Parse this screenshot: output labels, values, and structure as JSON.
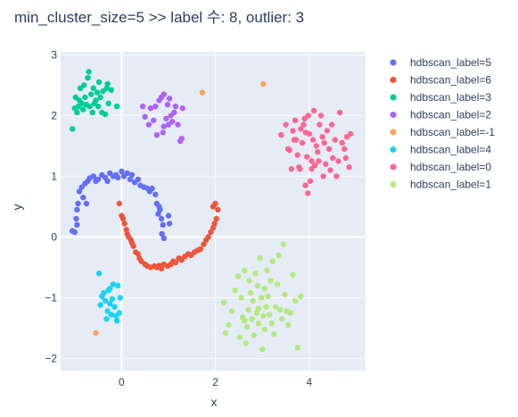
{
  "chart_data": {
    "type": "scatter",
    "title": "min_cluster_size=5 >> label 수: 8, outlier: 3",
    "xlabel": "x",
    "ylabel": "y",
    "xlim": [
      -1.3,
      5.2
    ],
    "ylim": [
      -2.2,
      3.05
    ],
    "xticks": [
      0,
      2,
      4
    ],
    "yticks": [
      -2,
      -1,
      0,
      1,
      2,
      3
    ],
    "background": "#e5ecf6",
    "grid": true,
    "legend_position": "right",
    "series": [
      {
        "name": "hdbscan_label=5",
        "color": "#636efa",
        "points": [
          [
            -1.05,
            0.1
          ],
          [
            -1.0,
            0.08
          ],
          [
            -0.97,
            0.3
          ],
          [
            -0.95,
            0.45
          ],
          [
            -0.93,
            0.55
          ],
          [
            -0.95,
            0.2
          ],
          [
            -0.9,
            0.75
          ],
          [
            -0.85,
            0.82
          ],
          [
            -0.82,
            0.65
          ],
          [
            -0.78,
            0.88
          ],
          [
            -0.75,
            0.55
          ],
          [
            -0.72,
            0.92
          ],
          [
            -0.68,
            0.97
          ],
          [
            -0.6,
            1.0
          ],
          [
            -0.55,
            0.92
          ],
          [
            -0.5,
            0.95
          ],
          [
            -0.42,
            1.02
          ],
          [
            -0.35,
            0.98
          ],
          [
            -0.3,
            0.92
          ],
          [
            -0.25,
            1.05
          ],
          [
            -0.18,
            1.0
          ],
          [
            -0.12,
            1.02
          ],
          [
            -0.08,
            0.98
          ],
          [
            0.0,
            1.08
          ],
          [
            0.05,
            1.0
          ],
          [
            0.12,
            1.05
          ],
          [
            0.18,
            0.95
          ],
          [
            0.22,
            1.02
          ],
          [
            0.28,
            0.9
          ],
          [
            0.35,
            0.95
          ],
          [
            0.4,
            0.85
          ],
          [
            0.48,
            0.82
          ],
          [
            0.55,
            0.8
          ],
          [
            0.6,
            0.75
          ],
          [
            0.65,
            0.8
          ],
          [
            0.72,
            0.7
          ],
          [
            0.75,
            0.55
          ],
          [
            0.8,
            0.5
          ],
          [
            0.82,
            0.45
          ],
          [
            0.78,
            0.38
          ],
          [
            0.85,
            0.3
          ],
          [
            0.88,
            0.2
          ],
          [
            0.86,
            0.05
          ],
          [
            1.0,
            0.35
          ],
          [
            1.02,
            0.22
          ],
          [
            0.9,
            -0.02
          ]
        ]
      },
      {
        "name": "hdbscan_label=6",
        "color": "#ef553b",
        "points": [
          [
            -0.05,
            0.55
          ],
          [
            0.0,
            0.35
          ],
          [
            0.03,
            0.3
          ],
          [
            0.06,
            0.22
          ],
          [
            0.1,
            0.12
          ],
          [
            0.12,
            0.05
          ],
          [
            0.15,
            0.0
          ],
          [
            0.2,
            -0.05
          ],
          [
            0.22,
            -0.1
          ],
          [
            0.25,
            -0.15
          ],
          [
            0.3,
            -0.25
          ],
          [
            0.35,
            -0.28
          ],
          [
            0.38,
            -0.35
          ],
          [
            0.42,
            -0.4
          ],
          [
            0.5,
            -0.45
          ],
          [
            0.55,
            -0.48
          ],
          [
            0.62,
            -0.5
          ],
          [
            0.7,
            -0.48
          ],
          [
            0.75,
            -0.5
          ],
          [
            0.8,
            -0.47
          ],
          [
            0.85,
            -0.52
          ],
          [
            0.9,
            -0.45
          ],
          [
            0.98,
            -0.48
          ],
          [
            1.05,
            -0.45
          ],
          [
            1.1,
            -0.4
          ],
          [
            1.15,
            -0.42
          ],
          [
            1.22,
            -0.35
          ],
          [
            1.28,
            -0.38
          ],
          [
            1.35,
            -0.32
          ],
          [
            1.42,
            -0.28
          ],
          [
            1.48,
            -0.3
          ],
          [
            1.55,
            -0.25
          ],
          [
            1.62,
            -0.22
          ],
          [
            1.68,
            -0.2
          ],
          [
            1.75,
            -0.12
          ],
          [
            1.8,
            -0.05
          ],
          [
            1.85,
            0.0
          ],
          [
            1.9,
            0.08
          ],
          [
            1.95,
            0.15
          ],
          [
            1.98,
            0.22
          ],
          [
            2.02,
            0.3
          ],
          [
            2.05,
            0.45
          ],
          [
            2.0,
            0.55
          ],
          [
            1.95,
            0.5
          ]
        ]
      },
      {
        "name": "hdbscan_label=3",
        "color": "#00cc96",
        "points": [
          [
            -1.05,
            1.78
          ],
          [
            -0.95,
            2.05
          ],
          [
            -0.92,
            2.15
          ],
          [
            -0.9,
            2.25
          ],
          [
            -0.88,
            2.45
          ],
          [
            -0.85,
            2.2
          ],
          [
            -0.82,
            2.1
          ],
          [
            -0.8,
            2.5
          ],
          [
            -0.78,
            2.3
          ],
          [
            -0.75,
            2.18
          ],
          [
            -0.72,
            2.62
          ],
          [
            -0.7,
            2.72
          ],
          [
            -0.68,
            2.15
          ],
          [
            -0.65,
            2.35
          ],
          [
            -0.62,
            2.05
          ],
          [
            -0.6,
            2.45
          ],
          [
            -0.58,
            2.2
          ],
          [
            -0.55,
            2.25
          ],
          [
            -0.52,
            2.38
          ],
          [
            -0.5,
            2.15
          ],
          [
            -0.48,
            2.55
          ],
          [
            -0.45,
            2.3
          ],
          [
            -0.42,
            2.05
          ],
          [
            -0.4,
            2.4
          ],
          [
            -0.35,
            2.02
          ],
          [
            -0.32,
            2.45
          ],
          [
            -0.3,
            2.52
          ],
          [
            -0.28,
            2.2
          ],
          [
            -0.22,
            2.42
          ],
          [
            -0.1,
            2.15
          ],
          [
            -1.0,
            2.12
          ],
          [
            -0.98,
            2.3
          ]
        ]
      },
      {
        "name": "hdbscan_label=2",
        "color": "#ab63fa",
        "points": [
          [
            0.45,
            2.15
          ],
          [
            0.5,
            1.98
          ],
          [
            0.58,
            1.85
          ],
          [
            0.62,
            2.12
          ],
          [
            0.68,
            1.92
          ],
          [
            0.72,
            2.15
          ],
          [
            0.75,
            1.68
          ],
          [
            0.8,
            2.25
          ],
          [
            0.85,
            2.3
          ],
          [
            0.88,
            1.72
          ],
          [
            0.9,
            2.35
          ],
          [
            0.95,
            1.95
          ],
          [
            0.98,
            2.18
          ],
          [
            1.0,
            1.85
          ],
          [
            1.02,
            2.28
          ],
          [
            1.05,
            2.0
          ],
          [
            1.08,
            1.9
          ],
          [
            1.12,
            2.05
          ],
          [
            1.15,
            2.15
          ],
          [
            1.2,
            1.85
          ],
          [
            1.25,
            1.58
          ],
          [
            1.28,
            1.62
          ],
          [
            1.3,
            2.12
          ],
          [
            0.9,
            1.82
          ]
        ]
      },
      {
        "name": "hdbscan_label=-1",
        "color": "#ffa15a",
        "points": [
          [
            1.72,
            2.38
          ],
          [
            3.02,
            2.52
          ],
          [
            -0.55,
            -1.58
          ]
        ]
      },
      {
        "name": "hdbscan_label=4",
        "color": "#19d3f3",
        "points": [
          [
            -0.48,
            -0.6
          ],
          [
            -0.45,
            -1.12
          ],
          [
            -0.42,
            -0.98
          ],
          [
            -0.38,
            -0.92
          ],
          [
            -0.35,
            -1.05
          ],
          [
            -0.32,
            -1.35
          ],
          [
            -0.3,
            -1.22
          ],
          [
            -0.28,
            -0.88
          ],
          [
            -0.25,
            -1.1
          ],
          [
            -0.22,
            -1.28
          ],
          [
            -0.2,
            -1.02
          ],
          [
            -0.18,
            -0.78
          ],
          [
            -0.15,
            -1.15
          ],
          [
            -0.12,
            -1.3
          ],
          [
            -0.1,
            -1.38
          ],
          [
            -0.08,
            -0.8
          ],
          [
            -0.05,
            -1.25
          ],
          [
            -0.03,
            -1.0
          ],
          [
            -0.25,
            -0.85
          ]
        ]
      },
      {
        "name": "hdbscan_label=0",
        "color": "#ff6692",
        "points": [
          [
            3.4,
            1.68
          ],
          [
            3.5,
            1.85
          ],
          [
            3.55,
            1.45
          ],
          [
            3.58,
            1.43
          ],
          [
            3.62,
            1.12
          ],
          [
            3.65,
            1.75
          ],
          [
            3.68,
            1.6
          ],
          [
            3.7,
            1.92
          ],
          [
            3.72,
            1.6
          ],
          [
            3.75,
            1.35
          ],
          [
            3.78,
            1.15
          ],
          [
            3.8,
            1.12
          ],
          [
            3.82,
            1.78
          ],
          [
            3.85,
            1.55
          ],
          [
            3.88,
            1.85
          ],
          [
            3.9,
            1.95
          ],
          [
            3.92,
            1.72
          ],
          [
            3.95,
            1.32
          ],
          [
            3.98,
            2.0
          ],
          [
            3.97,
            0.72
          ],
          [
            4.0,
            1.7
          ],
          [
            4.02,
            0.92
          ],
          [
            4.05,
            1.25
          ],
          [
            4.08,
            1.6
          ],
          [
            4.1,
            2.08
          ],
          [
            4.12,
            1.18
          ],
          [
            4.15,
            1.5
          ],
          [
            4.18,
            1.4
          ],
          [
            4.2,
            1.25
          ],
          [
            4.22,
            1.85
          ],
          [
            4.25,
            2.0
          ],
          [
            4.28,
            1.65
          ],
          [
            4.3,
            1.0
          ],
          [
            4.32,
            1.55
          ],
          [
            4.35,
            1.2
          ],
          [
            4.38,
            1.75
          ],
          [
            4.42,
            1.45
          ],
          [
            4.45,
            1.1
          ],
          [
            4.48,
            1.85
          ],
          [
            4.5,
            1.3
          ],
          [
            4.55,
            1.6
          ],
          [
            4.58,
            1.0
          ],
          [
            4.62,
            1.25
          ],
          [
            4.65,
            2.05
          ],
          [
            4.7,
            1.55
          ],
          [
            4.75,
            1.45
          ],
          [
            4.78,
            1.3
          ],
          [
            4.8,
            1.65
          ],
          [
            4.85,
            1.15
          ],
          [
            4.88,
            1.7
          ],
          [
            4.05,
            1.12
          ],
          [
            3.92,
            0.85
          ]
        ]
      },
      {
        "name": "hdbscan_label=1",
        "color": "#b6e880",
        "points": [
          [
            2.18,
            -1.08
          ],
          [
            2.22,
            -1.58
          ],
          [
            2.28,
            -1.45
          ],
          [
            2.35,
            -1.22
          ],
          [
            2.42,
            -0.88
          ],
          [
            2.48,
            -0.65
          ],
          [
            2.52,
            -1.65
          ],
          [
            2.55,
            -1.0
          ],
          [
            2.58,
            -1.32
          ],
          [
            2.62,
            -0.55
          ],
          [
            2.65,
            -1.75
          ],
          [
            2.68,
            -1.48
          ],
          [
            2.7,
            -1.2
          ],
          [
            2.72,
            -0.72
          ],
          [
            2.75,
            -0.92
          ],
          [
            2.78,
            -1.35
          ],
          [
            2.8,
            -1.05
          ],
          [
            2.82,
            -1.62
          ],
          [
            2.85,
            -0.6
          ],
          [
            2.88,
            -1.25
          ],
          [
            2.9,
            -0.8
          ],
          [
            2.92,
            -1.42
          ],
          [
            2.95,
            -0.35
          ],
          [
            2.98,
            -1.0
          ],
          [
            3.0,
            -1.85
          ],
          [
            3.02,
            -1.3
          ],
          [
            3.05,
            -0.85
          ],
          [
            3.08,
            -1.15
          ],
          [
            3.1,
            -0.55
          ],
          [
            3.12,
            -0.98
          ],
          [
            3.15,
            -1.28
          ],
          [
            3.18,
            -0.72
          ],
          [
            3.2,
            -1.42
          ],
          [
            3.22,
            -0.4
          ],
          [
            3.25,
            -1.6
          ],
          [
            3.28,
            -1.15
          ],
          [
            3.32,
            -0.78
          ],
          [
            3.35,
            -0.3
          ],
          [
            3.38,
            -1.2
          ],
          [
            3.42,
            -1.35
          ],
          [
            3.45,
            -0.12
          ],
          [
            3.48,
            -0.95
          ],
          [
            3.52,
            -1.22
          ],
          [
            3.55,
            -1.45
          ],
          [
            3.6,
            -1.25
          ],
          [
            3.65,
            -0.62
          ],
          [
            3.7,
            -1.05
          ],
          [
            3.75,
            -1.82
          ],
          [
            3.82,
            -0.98
          ],
          [
            2.62,
            -1.38
          ],
          [
            2.92,
            -1.18
          ],
          [
            3.05,
            -1.52
          ]
        ]
      }
    ]
  }
}
